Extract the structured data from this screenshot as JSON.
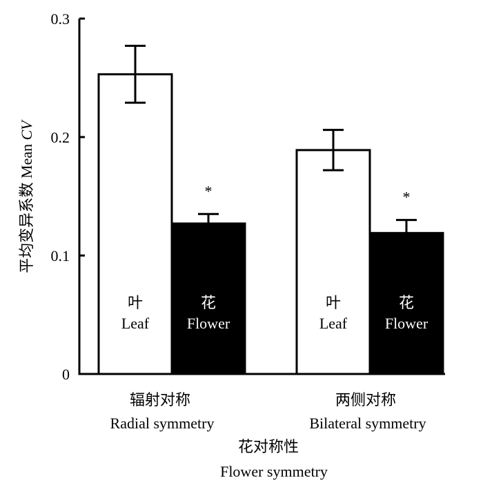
{
  "chart_data": {
    "type": "bar",
    "ylabel_cn": "平均变异系数",
    "ylabel_en": "Mean",
    "ylabel_italic": "CV",
    "ylim": [
      0,
      0.3
    ],
    "yticks": [
      {
        "value": 0,
        "label": "0"
      },
      {
        "value": 0.1,
        "label": "0.1"
      },
      {
        "value": 0.2,
        "label": "0.2"
      },
      {
        "value": 0.3,
        "label": "0.3"
      }
    ],
    "xlabel_cn": "花对称性",
    "xlabel_en": "Flower symmetry",
    "groups": [
      {
        "label_cn": "辐射对称",
        "label_en": "Radial symmetry",
        "bars": [
          {
            "series": "leaf",
            "label_cn": "叶",
            "label_en": "Leaf",
            "value": 0.253,
            "err_low": 0.229,
            "err_high": 0.277,
            "significance": ""
          },
          {
            "series": "flower",
            "label_cn": "花",
            "label_en": "Flower",
            "value": 0.127,
            "err_low": 0.12,
            "err_high": 0.135,
            "significance": "*"
          }
        ]
      },
      {
        "label_cn": "两侧对称",
        "label_en": "Bilateral symmetry",
        "bars": [
          {
            "series": "leaf",
            "label_cn": "叶",
            "label_en": "Leaf",
            "value": 0.189,
            "err_low": 0.172,
            "err_high": 0.206,
            "significance": ""
          },
          {
            "series": "flower",
            "label_cn": "花",
            "label_en": "Flower",
            "value": 0.119,
            "err_low": 0.11,
            "err_high": 0.13,
            "significance": "*"
          }
        ]
      }
    ],
    "colors": {
      "leaf": "#ffffff",
      "flower": "#000000",
      "axis": "#000000"
    },
    "grid": false
  }
}
